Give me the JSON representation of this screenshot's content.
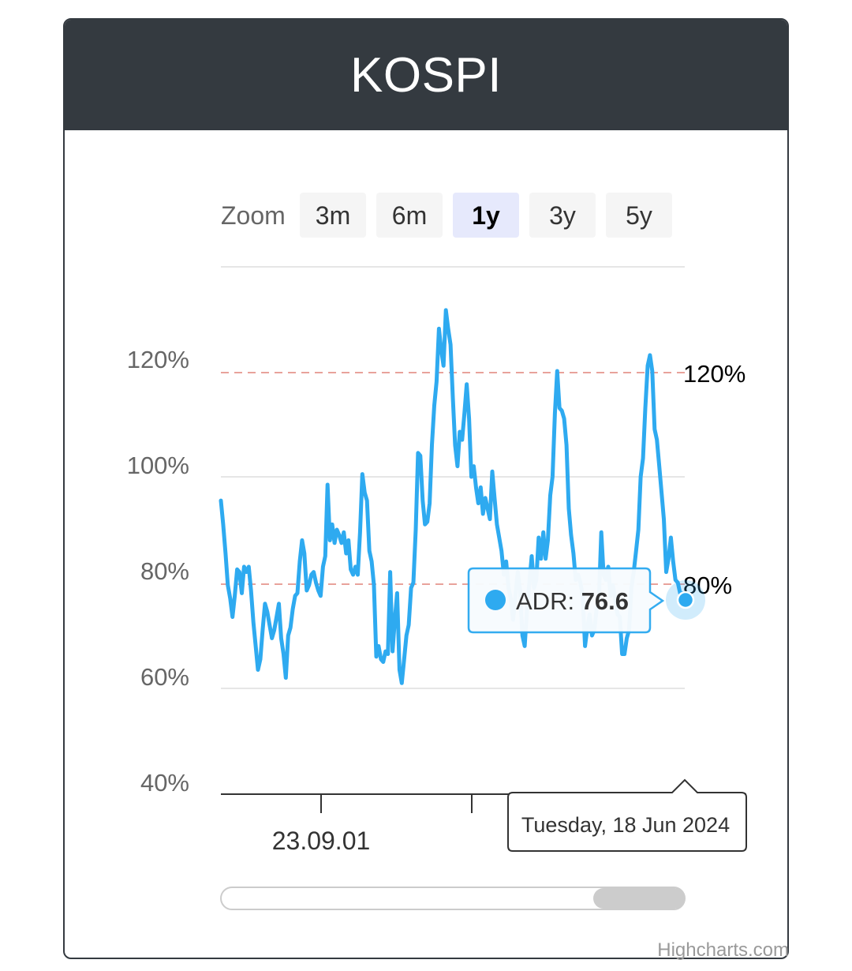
{
  "header": {
    "title": "KOSPI"
  },
  "zoom": {
    "label": "Zoom",
    "buttons": [
      "3m",
      "6m",
      "1y",
      "3y",
      "5y"
    ],
    "selected": "1y"
  },
  "colors": {
    "header_bg": "#343a40",
    "series": "#2eaaf0",
    "plot_band": "#e8a29b",
    "selected_button": "#e6e9fc",
    "button": "#f5f5f5"
  },
  "tooltip": {
    "series_label": "ADR",
    "value": "76.6",
    "date": "Tuesday, 18 Jun 2024"
  },
  "navigator": {
    "visible": true
  },
  "credits": "Highcharts.com",
  "chart_data": {
    "type": "line",
    "title": "",
    "xlabel": "",
    "ylabel": "",
    "ylim": [
      40,
      140
    ],
    "yticks": [
      "40%",
      "60%",
      "80%",
      "100%",
      "120%"
    ],
    "x_tick_labels": [
      "23.09.01"
    ],
    "plot_lines": [
      {
        "value": 120,
        "label": "120%"
      },
      {
        "value": 80,
        "label": "80%"
      }
    ],
    "grid": true,
    "series": [
      {
        "name": "ADR",
        "values": [
          95.5,
          91.0,
          85.5,
          79.5,
          77.0,
          73.5,
          77.5,
          82.5,
          82.0,
          78.0,
          83.0,
          82.0,
          83.0,
          78.5,
          72.5,
          68.0,
          63.5,
          65.5,
          71.0,
          76.0,
          74.5,
          72.0,
          69.5,
          71.0,
          73.5,
          76.0,
          69.5,
          66.5,
          62.0,
          70.0,
          71.5,
          75.0,
          77.5,
          78.0,
          84.0,
          88.0,
          85.5,
          78.5,
          79.5,
          81.5,
          82.0,
          80.0,
          78.5,
          77.5,
          83.0,
          85.0,
          98.5,
          88.0,
          91.0,
          87.5,
          90.0,
          89.0,
          87.5,
          89.5,
          85.5,
          88.0,
          82.5,
          81.5,
          83.0,
          81.5,
          89.5,
          100.5,
          97.0,
          95.5,
          86.0,
          84.0,
          79.5,
          66.0,
          68.0,
          65.5,
          65.0,
          67.0,
          66.5,
          82.0,
          67.0,
          73.0,
          78.0,
          63.5,
          61.0,
          65.5,
          70.0,
          72.0,
          79.0,
          80.0,
          90.0,
          104.5,
          104.0,
          95.5,
          91.0,
          91.5,
          95.0,
          106.0,
          113.5,
          118.0,
          128.0,
          124.0,
          121.0,
          131.5,
          128.0,
          125.0,
          115.0,
          106.0,
          102.0,
          108.5,
          107.0,
          112.0,
          117.5,
          111.0,
          100.0,
          102.0,
          98.0,
          95.0,
          98.0,
          93.0,
          96.0,
          94.0,
          92.0,
          101.0,
          96.0,
          91.0,
          88.5,
          86.0,
          81.5,
          84.0,
          79.0,
          77.0,
          73.0,
          77.5,
          82.0,
          78.5,
          70.0,
          68.0,
          75.0,
          80.0,
          85.0,
          79.0,
          80.5,
          88.5,
          84.5,
          89.5,
          84.5,
          88.0,
          96.5,
          100.0,
          112.0,
          120.0,
          113.0,
          112.5,
          111.0,
          106.0,
          94.0,
          89.0,
          85.5,
          80.5,
          81.5,
          80.0,
          77.5,
          68.0,
          71.5,
          74.0,
          70.0,
          71.0,
          75.0,
          77.0,
          89.5,
          81.5,
          80.5,
          83.0,
          77.5,
          79.5,
          77.0,
          74.0,
          73.5,
          66.5,
          66.5,
          69.5,
          71.0,
          79.0,
          82.0,
          86.0,
          90.0,
          100.0,
          103.5,
          113.0,
          121.0,
          123.0,
          120.0,
          109.0,
          107.0,
          102.0,
          97.0,
          92.0,
          82.0,
          84.5,
          88.5,
          84.0,
          80.5,
          80.0,
          78.0,
          78.0,
          76.6
        ]
      }
    ]
  }
}
